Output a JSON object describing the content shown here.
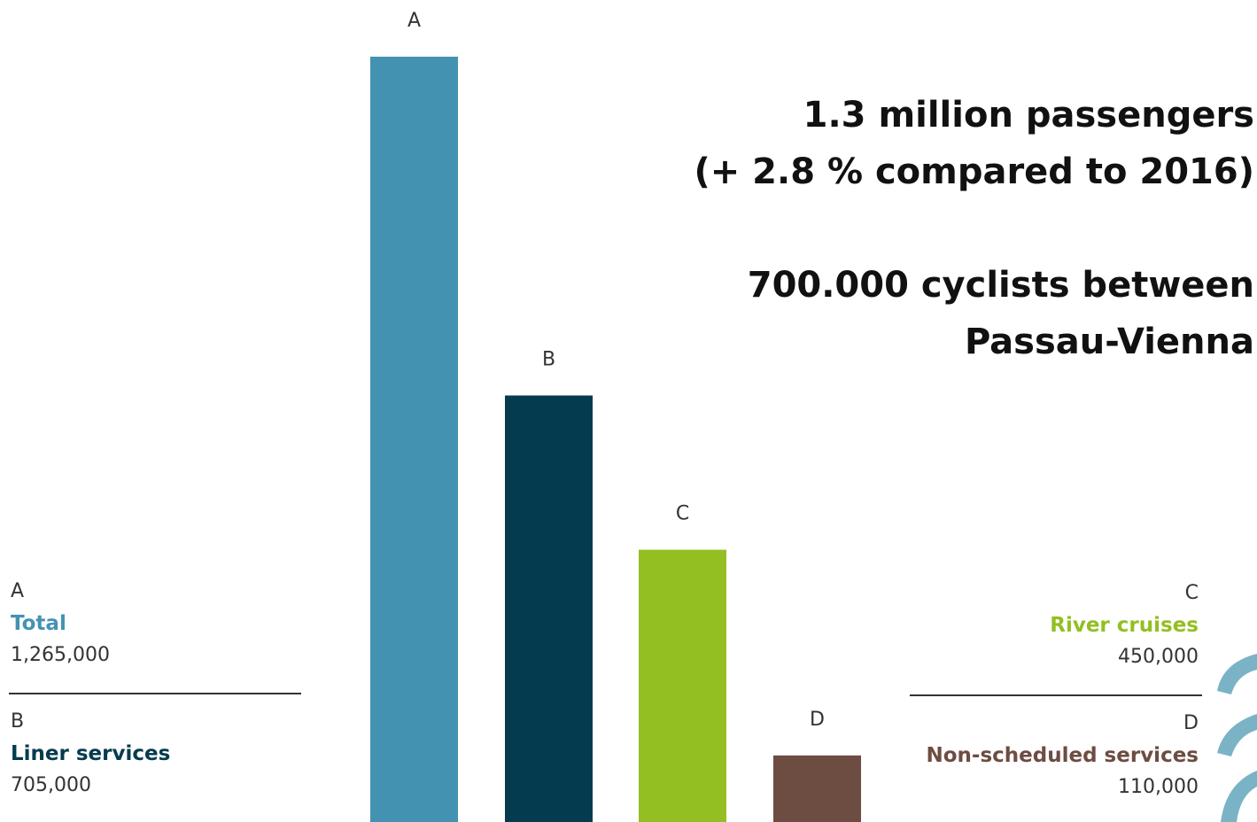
{
  "chart_data": {
    "type": "bar",
    "categories": [
      "A",
      "B",
      "C",
      "D"
    ],
    "values": [
      1265000,
      705000,
      450000,
      110000
    ],
    "ylim": [
      0,
      1265000
    ],
    "grid": false,
    "colors": [
      "#4492b2",
      "#043b4e",
      "#93bf22",
      "#6d4c42"
    ],
    "legend": [
      {
        "letter": "A",
        "name": "Total",
        "value": "1,265,000",
        "color": "#4492b2"
      },
      {
        "letter": "B",
        "name": "Liner services",
        "value": "705,000",
        "color": "#043b4e"
      },
      {
        "letter": "C",
        "name": "River cruises",
        "value": "450,000",
        "color": "#93bf22"
      },
      {
        "letter": "D",
        "name": "Non-scheduled services",
        "value": "110,000",
        "color": "#6d4c42"
      }
    ]
  },
  "headline": {
    "line1": "1.3 million passengers",
    "line2": "(+ 2.8 % compared to 2016)",
    "line3": "700.000 cyclists between",
    "line4": "Passau-Vienna"
  },
  "decor": {
    "swoosh_color": "#7ab3c6"
  }
}
